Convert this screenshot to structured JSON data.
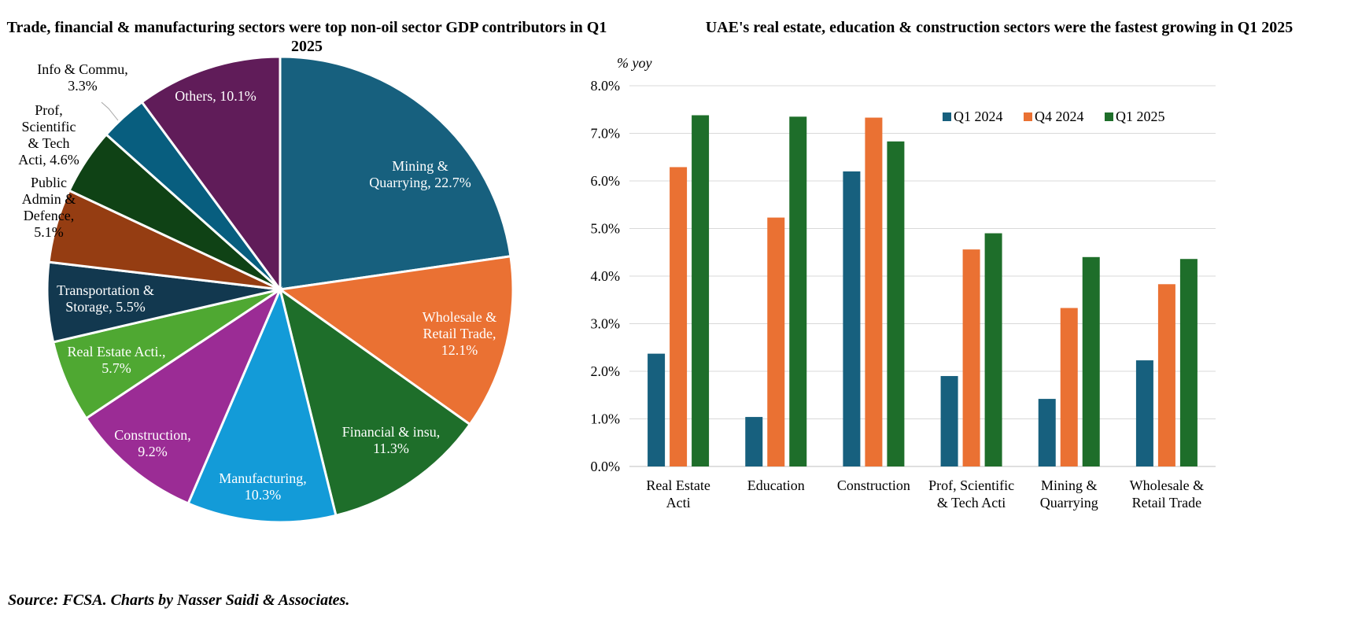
{
  "source": "Source: FCSA. Charts by Nasser Saidi & Associates.",
  "colors": {
    "q1_2024": "#17607e",
    "q4_2024": "#ea7133",
    "q1_2025": "#1e6e2a"
  },
  "chart_data": [
    {
      "type": "pie",
      "title": "Trade, financial & manufacturing sectors were top non-oil sector GDP contributors in Q1 2025",
      "slices": [
        {
          "label": [
            "Mining &",
            "Quarrying, 22.7%"
          ],
          "name": "Mining & Quarrying",
          "value": 22.7,
          "color": "#17607e",
          "text_color": "#ffffff"
        },
        {
          "label": [
            "Wholesale &",
            "Retail Trade,",
            "12.1%"
          ],
          "name": "Wholesale & Retail Trade",
          "value": 12.1,
          "color": "#ea7133",
          "text_color": "#ffffff"
        },
        {
          "label": [
            "Financial & insu,",
            "11.3%"
          ],
          "name": "Financial & insu",
          "value": 11.3,
          "color": "#1e6e2a",
          "text_color": "#ffffff"
        },
        {
          "label": [
            "Manufacturing,",
            "10.3%"
          ],
          "name": "Manufacturing",
          "value": 10.3,
          "color": "#139bd8",
          "text_color": "#ffffff"
        },
        {
          "label": [
            "Construction,",
            "9.2%"
          ],
          "name": "Construction",
          "value": 9.2,
          "color": "#9b2c95",
          "text_color": "#ffffff"
        },
        {
          "label": [
            "Real Estate Acti.,",
            "5.7%"
          ],
          "name": "Real Estate Acti.",
          "value": 5.7,
          "color": "#4fa832",
          "text_color": "#ffffff"
        },
        {
          "label": [
            "Transportation &",
            "Storage, 5.5%"
          ],
          "name": "Transportation & Storage",
          "value": 5.5,
          "color": "#12384f",
          "text_color": "#ffffff"
        },
        {
          "label": [
            "Public",
            "Admin &",
            "Defence,",
            "5.1%"
          ],
          "name": "Public Admin & Defence",
          "value": 5.1,
          "color": "#953d12",
          "text_color": "#000000"
        },
        {
          "label": [
            "Prof,",
            "Scientific",
            "& Tech",
            "Acti, 4.6%"
          ],
          "name": "Prof, Scientific & Tech Acti",
          "value": 4.6,
          "color": "#0f4215",
          "text_color": "#000000"
        },
        {
          "label": [
            "Info & Commu,",
            "3.3%"
          ],
          "name": "Info & Commu",
          "value": 3.3,
          "color": "#085e7f",
          "text_color": "#000000"
        },
        {
          "label": [
            "Others, 10.1%"
          ],
          "name": "Others",
          "value": 10.1,
          "color": "#601c59",
          "text_color": "#ffffff"
        }
      ]
    },
    {
      "type": "bar",
      "title": "UAE's real estate, education & construction sectors were the fastest growing in Q1 2025",
      "ylabel": "% yoy",
      "ylim": [
        0,
        8
      ],
      "yticks": [
        "0.0%",
        "1.0%",
        "2.0%",
        "3.0%",
        "4.0%",
        "5.0%",
        "6.0%",
        "7.0%",
        "8.0%"
      ],
      "categories": [
        [
          "Real Estate",
          "Acti"
        ],
        [
          "Education"
        ],
        [
          "Construction"
        ],
        [
          "Prof, Scientific",
          "& Tech Acti"
        ],
        [
          "Mining &",
          "Quarrying"
        ],
        [
          "Wholesale &",
          "Retail Trade"
        ]
      ],
      "series": [
        {
          "name": "Q1 2024",
          "color": "#17607e",
          "values": [
            2.37,
            1.04,
            6.2,
            1.9,
            1.42,
            2.23
          ]
        },
        {
          "name": "Q4 2024",
          "color": "#ea7133",
          "values": [
            6.29,
            5.23,
            7.33,
            4.56,
            3.33,
            3.83
          ]
        },
        {
          "name": "Q1 2025",
          "color": "#1e6e2a",
          "values": [
            7.38,
            7.35,
            6.83,
            4.9,
            4.4,
            4.36
          ]
        }
      ],
      "legend": "top-right",
      "grid": true
    }
  ]
}
